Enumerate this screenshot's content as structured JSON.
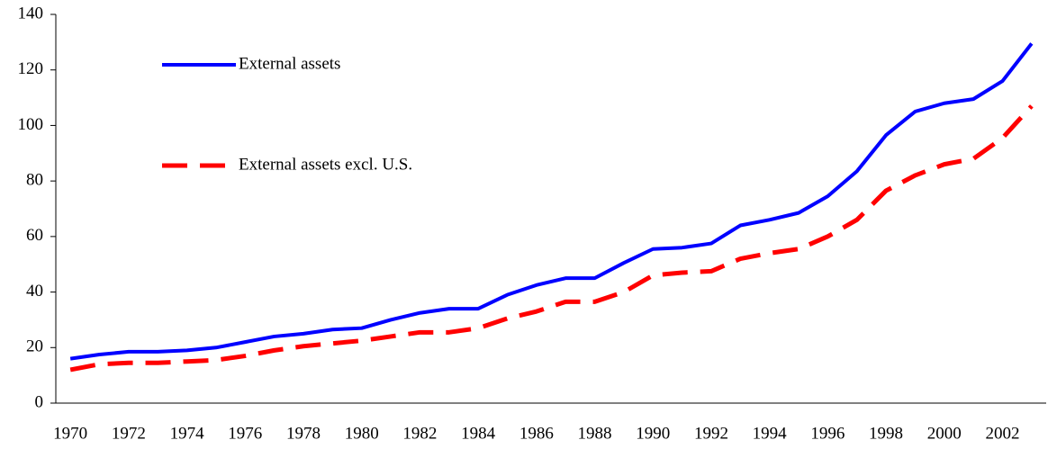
{
  "chart_data": {
    "type": "line",
    "x": [
      1970,
      1971,
      1972,
      1973,
      1974,
      1975,
      1976,
      1977,
      1978,
      1979,
      1980,
      1981,
      1982,
      1983,
      1984,
      1985,
      1986,
      1987,
      1988,
      1989,
      1990,
      1991,
      1992,
      1993,
      1994,
      1995,
      1996,
      1997,
      1998,
      1999,
      2000,
      2001,
      2002,
      2003
    ],
    "series": [
      {
        "name": "External assets",
        "color": "#0000ff",
        "dash": "solid",
        "values": [
          16,
          17.5,
          18.5,
          18.5,
          19,
          20,
          22,
          24,
          25,
          26.5,
          27,
          30,
          32.5,
          34,
          34,
          39,
          42.5,
          45,
          45,
          50.5,
          55.5,
          56,
          57.5,
          64,
          66,
          68.5,
          74.5,
          83.5,
          96.5,
          105,
          108,
          109.5,
          116,
          129.5
        ]
      },
      {
        "name": "External assets excl. U.S.",
        "color": "#ff0000",
        "dash": "dashed",
        "values": [
          12,
          14,
          14.5,
          14.5,
          15,
          15.5,
          17,
          19,
          20.5,
          21.5,
          22.5,
          24,
          25.5,
          25.5,
          27,
          30.5,
          33,
          36.5,
          36.5,
          40,
          46,
          47,
          47.5,
          52,
          54,
          55.5,
          60,
          66,
          76.5,
          82,
          86,
          88,
          95.5,
          107
        ]
      }
    ],
    "xlim": [
      1969.5,
      2003.5
    ],
    "xticks": [
      1970,
      1972,
      1974,
      1976,
      1978,
      1980,
      1982,
      1984,
      1986,
      1988,
      1990,
      1992,
      1994,
      1996,
      1998,
      2000,
      2002
    ],
    "ylim": [
      0,
      140
    ],
    "yticks": [
      0,
      20,
      40,
      60,
      80,
      100,
      120,
      140
    ],
    "legend": "upper left",
    "grid": false
  }
}
